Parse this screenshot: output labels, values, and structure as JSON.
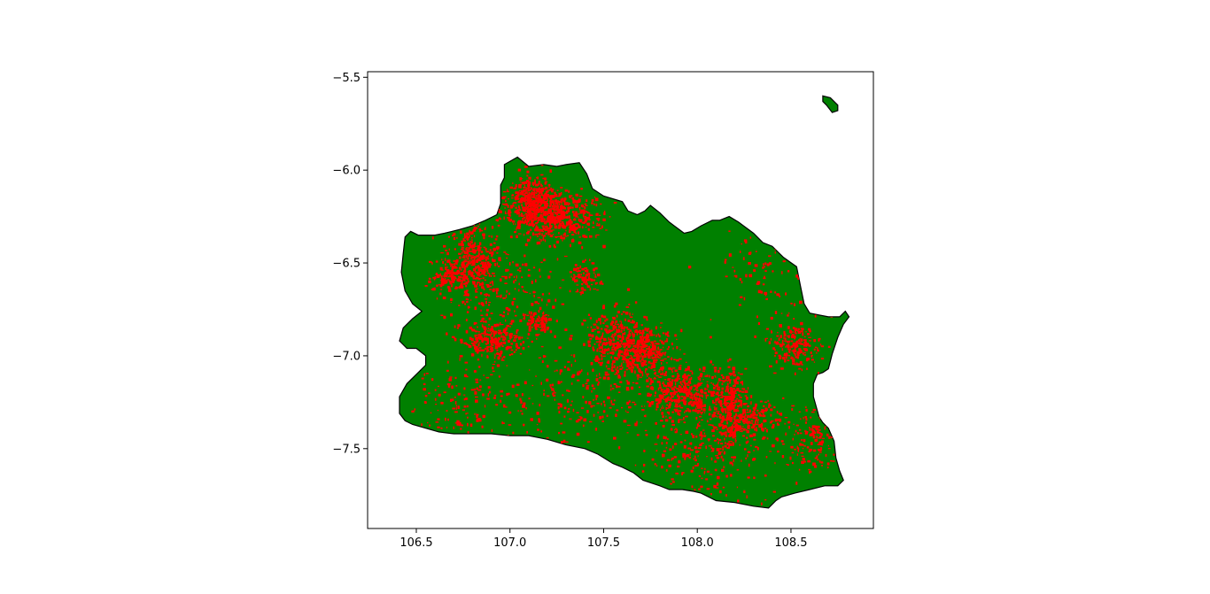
{
  "chart_data": {
    "type": "map",
    "xlim": [
      106.24,
      108.94
    ],
    "ylim": [
      -7.93,
      -5.47
    ],
    "x_ticks": [
      106.5,
      107.0,
      107.5,
      108.0,
      108.5
    ],
    "y_ticks": [
      -5.5,
      -6.0,
      -6.5,
      -7.0,
      -7.5
    ],
    "x_tick_labels": [
      "106.5",
      "107.0",
      "107.5",
      "108.0",
      "108.5"
    ],
    "y_tick_labels": [
      "−5.5",
      "−6.0",
      "−6.5",
      "−7.0",
      "−7.5"
    ],
    "grid": false,
    "layers": [
      {
        "role": "base polygon",
        "fill_color": "#008000",
        "edge_color": "#000000"
      },
      {
        "role": "overlay features",
        "fill_color": "#ff0000"
      }
    ],
    "main_polygon": [
      [
        106.97,
        -5.97
      ],
      [
        107.04,
        -5.93
      ],
      [
        107.1,
        -5.98
      ],
      [
        107.18,
        -5.97
      ],
      [
        107.25,
        -5.98
      ],
      [
        107.3,
        -5.97
      ],
      [
        107.37,
        -5.96
      ],
      [
        107.41,
        -6.02
      ],
      [
        107.44,
        -6.1
      ],
      [
        107.5,
        -6.14
      ],
      [
        107.6,
        -6.17
      ],
      [
        107.63,
        -6.22
      ],
      [
        107.68,
        -6.24
      ],
      [
        107.72,
        -6.22
      ],
      [
        107.75,
        -6.19
      ],
      [
        107.8,
        -6.23
      ],
      [
        107.85,
        -6.28
      ],
      [
        107.93,
        -6.34
      ],
      [
        107.97,
        -6.33
      ],
      [
        108.02,
        -6.3
      ],
      [
        108.08,
        -6.27
      ],
      [
        108.12,
        -6.27
      ],
      [
        108.17,
        -6.25
      ],
      [
        108.22,
        -6.28
      ],
      [
        108.3,
        -6.34
      ],
      [
        108.35,
        -6.39
      ],
      [
        108.4,
        -6.41
      ],
      [
        108.46,
        -6.47
      ],
      [
        108.53,
        -6.52
      ],
      [
        108.55,
        -6.62
      ],
      [
        108.57,
        -6.72
      ],
      [
        108.6,
        -6.77
      ],
      [
        108.65,
        -6.78
      ],
      [
        108.7,
        -6.79
      ],
      [
        108.76,
        -6.79
      ],
      [
        108.79,
        -6.76
      ],
      [
        108.81,
        -6.79
      ],
      [
        108.78,
        -6.83
      ],
      [
        108.75,
        -6.9
      ],
      [
        108.72,
        -6.99
      ],
      [
        108.7,
        -7.07
      ],
      [
        108.67,
        -7.09
      ],
      [
        108.64,
        -7.1
      ],
      [
        108.62,
        -7.15
      ],
      [
        108.62,
        -7.22
      ],
      [
        108.65,
        -7.33
      ],
      [
        108.67,
        -7.36
      ],
      [
        108.7,
        -7.39
      ],
      [
        108.73,
        -7.46
      ],
      [
        108.74,
        -7.55
      ],
      [
        108.76,
        -7.62
      ],
      [
        108.78,
        -7.67
      ],
      [
        108.75,
        -7.7
      ],
      [
        108.68,
        -7.7
      ],
      [
        108.6,
        -7.72
      ],
      [
        108.52,
        -7.74
      ],
      [
        108.45,
        -7.76
      ],
      [
        108.42,
        -7.78
      ],
      [
        108.38,
        -7.82
      ],
      [
        108.3,
        -7.81
      ],
      [
        108.2,
        -7.79
      ],
      [
        108.1,
        -7.78
      ],
      [
        108.02,
        -7.74
      ],
      [
        107.98,
        -7.73
      ],
      [
        107.92,
        -7.72
      ],
      [
        107.85,
        -7.72
      ],
      [
        107.8,
        -7.7
      ],
      [
        107.71,
        -7.67
      ],
      [
        107.66,
        -7.63
      ],
      [
        107.6,
        -7.6
      ],
      [
        107.55,
        -7.58
      ],
      [
        107.47,
        -7.53
      ],
      [
        107.4,
        -7.5
      ],
      [
        107.3,
        -7.48
      ],
      [
        107.2,
        -7.45
      ],
      [
        107.1,
        -7.43
      ],
      [
        107.0,
        -7.43
      ],
      [
        106.9,
        -7.42
      ],
      [
        106.8,
        -7.42
      ],
      [
        106.7,
        -7.42
      ],
      [
        106.62,
        -7.41
      ],
      [
        106.55,
        -7.39
      ],
      [
        106.48,
        -7.37
      ],
      [
        106.44,
        -7.35
      ],
      [
        106.41,
        -7.31
      ],
      [
        106.41,
        -7.22
      ],
      [
        106.45,
        -7.15
      ],
      [
        106.5,
        -7.1
      ],
      [
        106.55,
        -7.05
      ],
      [
        106.55,
        -7.0
      ],
      [
        106.5,
        -6.96
      ],
      [
        106.45,
        -6.96
      ],
      [
        106.41,
        -6.92
      ],
      [
        106.43,
        -6.85
      ],
      [
        106.48,
        -6.8
      ],
      [
        106.53,
        -6.76
      ],
      [
        106.48,
        -6.72
      ],
      [
        106.44,
        -6.65
      ],
      [
        106.42,
        -6.55
      ],
      [
        106.43,
        -6.45
      ],
      [
        106.44,
        -6.36
      ],
      [
        106.47,
        -6.33
      ],
      [
        106.51,
        -6.35
      ],
      [
        106.6,
        -6.35
      ],
      [
        106.65,
        -6.34
      ],
      [
        106.73,
        -6.32
      ],
      [
        106.8,
        -6.3
      ],
      [
        106.87,
        -6.27
      ],
      [
        106.93,
        -6.24
      ],
      [
        106.95,
        -6.18
      ],
      [
        106.95,
        -6.08
      ],
      [
        106.97,
        -6.04
      ],
      [
        106.97,
        -5.97
      ]
    ],
    "island_polygon": [
      [
        108.67,
        -5.6
      ],
      [
        108.71,
        -5.61
      ],
      [
        108.75,
        -5.65
      ],
      [
        108.75,
        -5.68
      ],
      [
        108.72,
        -5.69
      ],
      [
        108.69,
        -5.65
      ],
      [
        108.67,
        -5.63
      ],
      [
        108.67,
        -5.6
      ]
    ],
    "urban_clusters": [
      {
        "x": 107.13,
        "y": -6.22,
        "sx": 0.09,
        "sy": 0.06,
        "n": 380
      },
      {
        "x": 107.3,
        "y": -6.26,
        "sx": 0.1,
        "sy": 0.07,
        "n": 330
      },
      {
        "x": 107.12,
        "y": -6.12,
        "sx": 0.06,
        "sy": 0.05,
        "n": 160
      },
      {
        "x": 106.8,
        "y": -6.48,
        "sx": 0.07,
        "sy": 0.09,
        "n": 300
      },
      {
        "x": 106.68,
        "y": -6.58,
        "sx": 0.05,
        "sy": 0.04,
        "n": 110
      },
      {
        "x": 106.9,
        "y": -6.92,
        "sx": 0.08,
        "sy": 0.05,
        "n": 220
      },
      {
        "x": 107.6,
        "y": -6.93,
        "sx": 0.09,
        "sy": 0.08,
        "n": 420
      },
      {
        "x": 107.75,
        "y": -6.99,
        "sx": 0.07,
        "sy": 0.06,
        "n": 200
      },
      {
        "x": 107.9,
        "y": -7.2,
        "sx": 0.09,
        "sy": 0.07,
        "n": 360
      },
      {
        "x": 108.17,
        "y": -7.2,
        "sx": 0.05,
        "sy": 0.07,
        "n": 200
      },
      {
        "x": 108.22,
        "y": -7.35,
        "sx": 0.12,
        "sy": 0.06,
        "n": 320
      },
      {
        "x": 108.52,
        "y": -6.95,
        "sx": 0.07,
        "sy": 0.06,
        "n": 190
      },
      {
        "x": 107.15,
        "y": -6.82,
        "sx": 0.04,
        "sy": 0.03,
        "n": 90
      },
      {
        "x": 107.4,
        "y": -6.58,
        "sx": 0.04,
        "sy": 0.04,
        "n": 80
      },
      {
        "x": 106.75,
        "y": -7.25,
        "sx": 0.15,
        "sy": 0.1,
        "n": 130
      },
      {
        "x": 108.62,
        "y": -7.45,
        "sx": 0.08,
        "sy": 0.1,
        "n": 150
      },
      {
        "x": 107.35,
        "y": -7.2,
        "sx": 0.25,
        "sy": 0.15,
        "n": 240
      },
      {
        "x": 108.05,
        "y": -7.55,
        "sx": 0.2,
        "sy": 0.1,
        "n": 200
      },
      {
        "x": 106.95,
        "y": -6.65,
        "sx": 0.15,
        "sy": 0.12,
        "n": 180
      },
      {
        "x": 108.4,
        "y": -6.55,
        "sx": 0.15,
        "sy": 0.15,
        "n": 100
      }
    ]
  }
}
